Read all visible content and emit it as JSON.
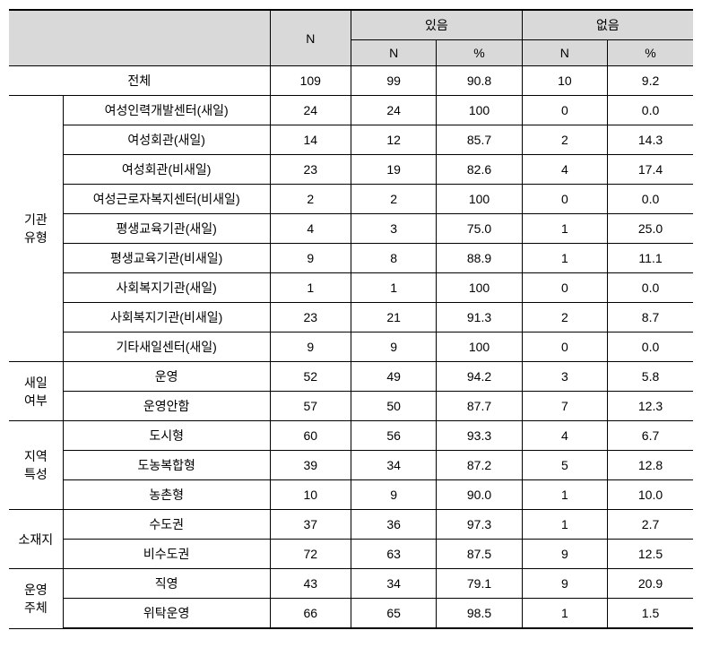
{
  "header": {
    "n": "N",
    "yes": "있음",
    "no": "없음",
    "sub_n": "N",
    "sub_pct": "%"
  },
  "total": {
    "label": "전체",
    "n": "109",
    "yes_n": "99",
    "yes_pct": "90.8",
    "no_n": "10",
    "no_pct": "9.2"
  },
  "groups": [
    {
      "label": "기관\n유형",
      "rows": [
        {
          "label": "여성인력개발센터(새일)",
          "n": "24",
          "yes_n": "24",
          "yes_pct": "100",
          "no_n": "0",
          "no_pct": "0.0"
        },
        {
          "label": "여성회관(새일)",
          "n": "14",
          "yes_n": "12",
          "yes_pct": "85.7",
          "no_n": "2",
          "no_pct": "14.3"
        },
        {
          "label": "여성회관(비새일)",
          "n": "23",
          "yes_n": "19",
          "yes_pct": "82.6",
          "no_n": "4",
          "no_pct": "17.4"
        },
        {
          "label": "여성근로자복지센터(비새일)",
          "n": "2",
          "yes_n": "2",
          "yes_pct": "100",
          "no_n": "0",
          "no_pct": "0.0"
        },
        {
          "label": "평생교육기관(새일)",
          "n": "4",
          "yes_n": "3",
          "yes_pct": "75.0",
          "no_n": "1",
          "no_pct": "25.0"
        },
        {
          "label": "평생교육기관(비새일)",
          "n": "9",
          "yes_n": "8",
          "yes_pct": "88.9",
          "no_n": "1",
          "no_pct": "11.1"
        },
        {
          "label": "사회복지기관(새일)",
          "n": "1",
          "yes_n": "1",
          "yes_pct": "100",
          "no_n": "0",
          "no_pct": "0.0"
        },
        {
          "label": "사회복지기관(비새일)",
          "n": "23",
          "yes_n": "21",
          "yes_pct": "91.3",
          "no_n": "2",
          "no_pct": "8.7"
        },
        {
          "label": "기타새일센터(새일)",
          "n": "9",
          "yes_n": "9",
          "yes_pct": "100",
          "no_n": "0",
          "no_pct": "0.0"
        }
      ]
    },
    {
      "label": "새일\n여부",
      "rows": [
        {
          "label": "운영",
          "n": "52",
          "yes_n": "49",
          "yes_pct": "94.2",
          "no_n": "3",
          "no_pct": "5.8"
        },
        {
          "label": "운영안함",
          "n": "57",
          "yes_n": "50",
          "yes_pct": "87.7",
          "no_n": "7",
          "no_pct": "12.3"
        }
      ]
    },
    {
      "label": "지역\n특성",
      "rows": [
        {
          "label": "도시형",
          "n": "60",
          "yes_n": "56",
          "yes_pct": "93.3",
          "no_n": "4",
          "no_pct": "6.7"
        },
        {
          "label": "도농복합형",
          "n": "39",
          "yes_n": "34",
          "yes_pct": "87.2",
          "no_n": "5",
          "no_pct": "12.8"
        },
        {
          "label": "농촌형",
          "n": "10",
          "yes_n": "9",
          "yes_pct": "90.0",
          "no_n": "1",
          "no_pct": "10.0"
        }
      ]
    },
    {
      "label": "소재지",
      "rows": [
        {
          "label": "수도권",
          "n": "37",
          "yes_n": "36",
          "yes_pct": "97.3",
          "no_n": "1",
          "no_pct": "2.7"
        },
        {
          "label": "비수도권",
          "n": "72",
          "yes_n": "63",
          "yes_pct": "87.5",
          "no_n": "9",
          "no_pct": "12.5"
        }
      ]
    },
    {
      "label": "운영\n주체",
      "rows": [
        {
          "label": "직영",
          "n": "43",
          "yes_n": "34",
          "yes_pct": "79.1",
          "no_n": "9",
          "no_pct": "20.9"
        },
        {
          "label": "위탁운영",
          "n": "66",
          "yes_n": "65",
          "yes_pct": "98.5",
          "no_n": "1",
          "no_pct": "1.5"
        }
      ]
    }
  ]
}
